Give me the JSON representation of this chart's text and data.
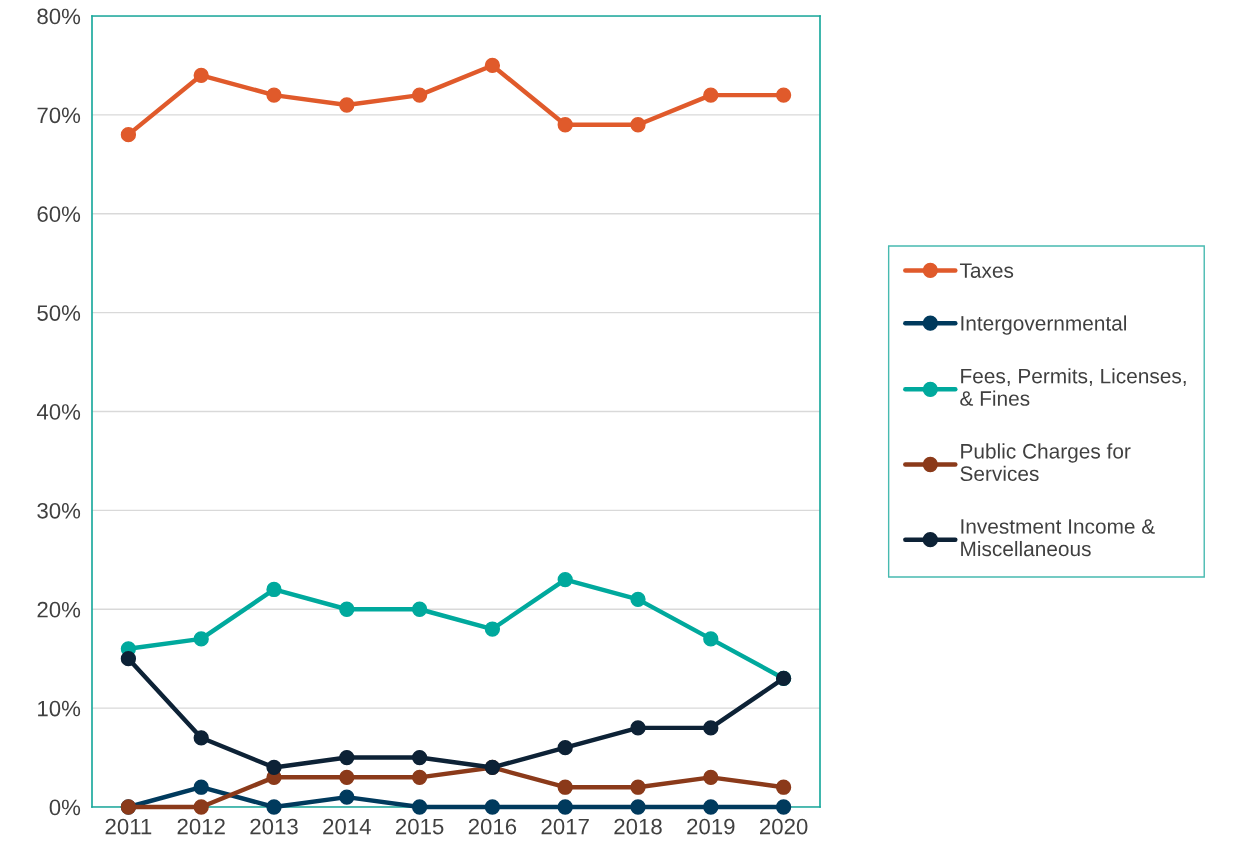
{
  "chart_data": {
    "type": "line",
    "categories": [
      "2011",
      "2012",
      "2013",
      "2014",
      "2015",
      "2016",
      "2017",
      "2018",
      "2019",
      "2020"
    ],
    "series": [
      {
        "name": "Taxes",
        "color": "#e05a2b",
        "values": [
          68,
          74,
          72,
          71,
          72,
          75,
          69,
          69,
          72,
          72
        ]
      },
      {
        "name": "Intergovernmental",
        "color": "#003a5d",
        "values": [
          0,
          2,
          0,
          1,
          0,
          0,
          0,
          0,
          0,
          0
        ]
      },
      {
        "name": "Fees, Permits, Licenses,\n& Fines",
        "color": "#00a99d",
        "values": [
          16,
          17,
          22,
          20,
          20,
          18,
          23,
          21,
          17,
          13
        ]
      },
      {
        "name": "Public Charges for\nServices",
        "color": "#8b3a1a",
        "values": [
          0,
          0,
          3,
          3,
          3,
          4,
          2,
          2,
          3,
          2
        ]
      },
      {
        "name": "Investment Income &\nMiscellaneous",
        "color": "#0d2236",
        "values": [
          15,
          7,
          4,
          5,
          5,
          4,
          6,
          8,
          8,
          13
        ]
      }
    ],
    "ylim": [
      0,
      80
    ],
    "yticks": [
      {
        "value": 0,
        "label": "0%"
      },
      {
        "value": 10,
        "label": "10%"
      },
      {
        "value": 20,
        "label": "20%"
      },
      {
        "value": 30,
        "label": "30%"
      },
      {
        "value": 40,
        "label": "40%"
      },
      {
        "value": 50,
        "label": "50%"
      },
      {
        "value": 60,
        "label": "60%"
      },
      {
        "value": 70,
        "label": "70%"
      },
      {
        "value": 80,
        "label": "80%"
      }
    ],
    "grid": "y",
    "legend": "right",
    "marker": "circle",
    "line_style": "solid"
  }
}
